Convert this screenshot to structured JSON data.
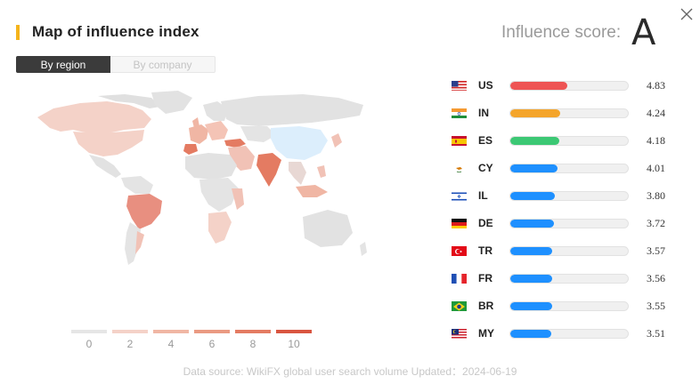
{
  "header": {
    "title": "Map of influence index",
    "score_label": "Influence score:",
    "score_grade": "A",
    "accent_color": "#f5b41c"
  },
  "tabs": [
    {
      "label": "By region",
      "active": true
    },
    {
      "label": "By company",
      "active": false
    }
  ],
  "legend": {
    "labels": [
      "0",
      "2",
      "4",
      "6",
      "8",
      "10"
    ],
    "colors": [
      "#e6e6e6",
      "#f4d2c8",
      "#f0b6a4",
      "#ea9a82",
      "#e47b62",
      "#d95540"
    ]
  },
  "ranking": [
    {
      "code": "US",
      "value": "4.83",
      "bar_fraction": 0.483,
      "bar_color": "#ee5454",
      "flag": "us-flag-icon"
    },
    {
      "code": "IN",
      "value": "4.24",
      "bar_fraction": 0.424,
      "bar_color": "#f4a52a",
      "flag": "in-flag-icon"
    },
    {
      "code": "ES",
      "value": "4.18",
      "bar_fraction": 0.418,
      "bar_color": "#3cc874",
      "flag": "es-flag-icon"
    },
    {
      "code": "CY",
      "value": "4.01",
      "bar_fraction": 0.401,
      "bar_color": "#1e90ff",
      "flag": "cy-flag-icon"
    },
    {
      "code": "IL",
      "value": "3.80",
      "bar_fraction": 0.38,
      "bar_color": "#1e90ff",
      "flag": "il-flag-icon"
    },
    {
      "code": "DE",
      "value": "3.72",
      "bar_fraction": 0.372,
      "bar_color": "#1e90ff",
      "flag": "de-flag-icon"
    },
    {
      "code": "TR",
      "value": "3.57",
      "bar_fraction": 0.357,
      "bar_color": "#1e90ff",
      "flag": "tr-flag-icon"
    },
    {
      "code": "FR",
      "value": "3.56",
      "bar_fraction": 0.356,
      "bar_color": "#1e90ff",
      "flag": "fr-flag-icon"
    },
    {
      "code": "BR",
      "value": "3.55",
      "bar_fraction": 0.355,
      "bar_color": "#1e90ff",
      "flag": "br-flag-icon"
    },
    {
      "code": "MY",
      "value": "3.51",
      "bar_fraction": 0.351,
      "bar_color": "#1e90ff",
      "flag": "my-flag-icon"
    }
  ],
  "footer": {
    "text": "Data source: WikiFX global user search volume Updated：2024-06-19"
  }
}
